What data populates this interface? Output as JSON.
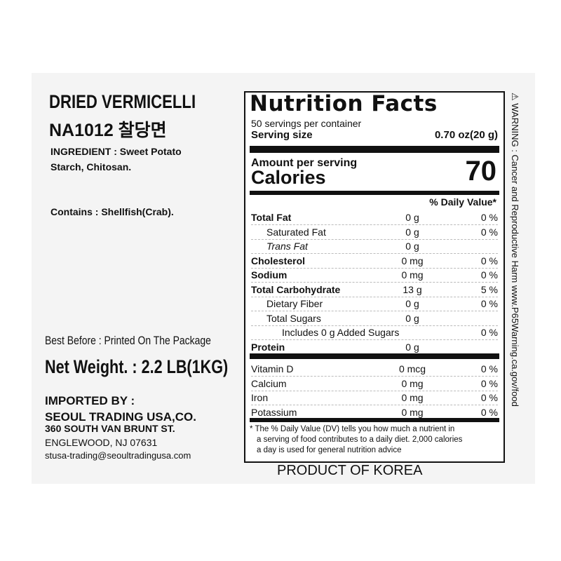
{
  "left": {
    "title": "DRIED VERMICELLI",
    "code": "NA1012 찰당면",
    "ingredient": [
      "INGREDIENT : Sweet Potato",
      "Starch, Chitosan."
    ],
    "contains": "Contains : Shellfish(Crab).",
    "best_before": "Best Before : Printed On The Package",
    "net_weight": "Net Weight. : 2.2 LB(1KG)",
    "imported_by": "IMPORTED BY :",
    "company": "SEOUL TRADING USA,CO.",
    "address1": "360 SOUTH VAN BRUNT ST.",
    "address2": "ENGLEWOOD, NJ 07631",
    "email": "stusa-trading@seoultradingusa.com"
  },
  "nutrition": {
    "title": "Nutrition Facts",
    "servings": "50 servings per container",
    "serving_size_label": "Serving size",
    "serving_size": "0.70 oz(20 g)",
    "amount_per_serving": "Amount per serving",
    "calories_label": "Calories",
    "calories": "70",
    "dv_header": "% Daily Value*",
    "rows": [
      {
        "name": "Total Fat",
        "amount": "0 g",
        "dv": "0 %",
        "bold": true,
        "indent": 0
      },
      {
        "name": "Saturated Fat",
        "amount": "0 g",
        "dv": "0 %",
        "bold": false,
        "indent": 1
      },
      {
        "name": "Trans Fat",
        "amount": "0 g",
        "dv": "",
        "bold": false,
        "indent": 1,
        "italic": true
      },
      {
        "name": "Cholesterol",
        "amount": "0 mg",
        "dv": "0 %",
        "bold": true,
        "indent": 0
      },
      {
        "name": "Sodium",
        "amount": "0 mg",
        "dv": "0 %",
        "bold": true,
        "indent": 0
      },
      {
        "name": "Total Carbohydrate",
        "amount": "13 g",
        "dv": "5 %",
        "bold": true,
        "indent": 0
      },
      {
        "name": "Dietary Fiber",
        "amount": "0 g",
        "dv": "0 %",
        "bold": false,
        "indent": 1
      },
      {
        "name": "Total Sugars",
        "amount": "0 g",
        "dv": "",
        "bold": false,
        "indent": 1
      },
      {
        "name": "Includes 0 g Added Sugars",
        "amount": "",
        "dv": "0 %",
        "bold": false,
        "indent": 2
      },
      {
        "name": "Protein",
        "amount": "0 g",
        "dv": "",
        "bold": true,
        "indent": 0
      }
    ],
    "vitamins": [
      {
        "name": "Vitamin D",
        "amount": "0 mcg",
        "dv": "0 %"
      },
      {
        "name": "Calcium",
        "amount": "0 mg",
        "dv": "0 %"
      },
      {
        "name": "Iron",
        "amount": "0 mg",
        "dv": "0 %"
      },
      {
        "name": "Potassium",
        "amount": "0 mg",
        "dv": "0 %"
      }
    ],
    "footnote": [
      "* The % Daily Value (DV) tells you how much a nutrient in",
      "a serving of food contributes to a daily diet. 2,000 calories",
      "a day is used for general nutrition advice"
    ]
  },
  "warning": "⚠ WARNING : Cancer and Reproductive Harm  www.P65Warning.ca.gov/food",
  "origin": "PRODUCT OF KOREA"
}
